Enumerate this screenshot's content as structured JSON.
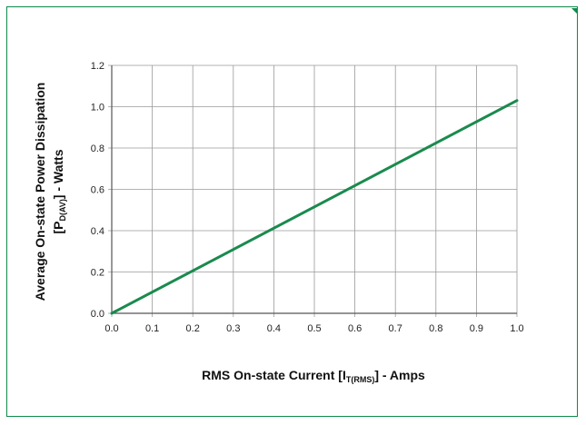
{
  "colors": {
    "frame": "#0e8a4a",
    "line": "#1a8a4e",
    "grid": "#9a9a9a",
    "axis": "#555555"
  },
  "chart_data": {
    "type": "line",
    "x": [
      0.0,
      1.0
    ],
    "series": [
      {
        "values": [
          0.0,
          1.03
        ]
      }
    ],
    "xlabel": "RMS On-state Current [I_T(RMS)] - Amps",
    "xlabel_parts": {
      "pre": "RMS On-state Current [I",
      "sub": "T(RMS)",
      "post": "] - Amps"
    },
    "ylabel_line1": "Average On-state Power Dissipation",
    "ylabel_line2_parts": {
      "pre": "[P",
      "sub": "D(AV)",
      "post": "] - Watts"
    },
    "xlim": [
      0.0,
      1.0
    ],
    "ylim": [
      0.0,
      1.2
    ],
    "x_ticks": [
      "0.0",
      "0.1",
      "0.2",
      "0.3",
      "0.4",
      "0.5",
      "0.6",
      "0.7",
      "0.8",
      "0.9",
      "1.0"
    ],
    "y_ticks": [
      "0.0",
      "0.2",
      "0.4",
      "0.6",
      "0.8",
      "1.0",
      "1.2"
    ],
    "grid": true
  }
}
